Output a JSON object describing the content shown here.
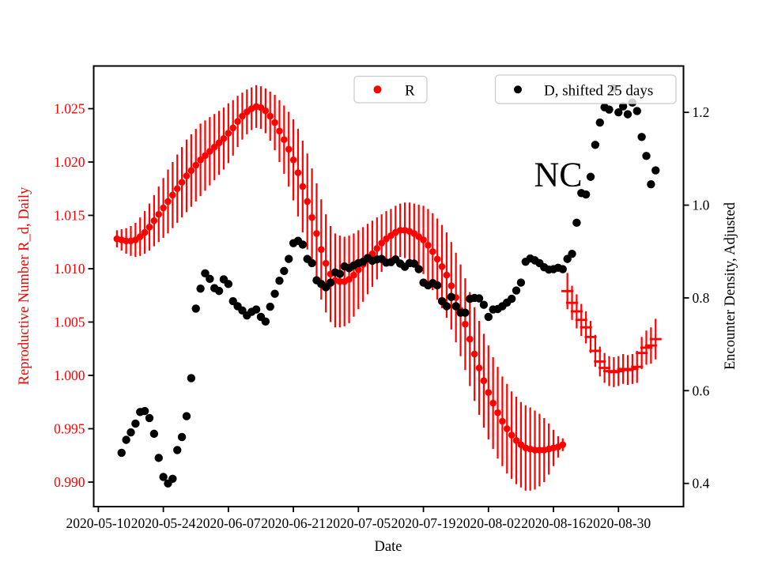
{
  "legend": [
    {
      "label": "R",
      "color": "#ff0000"
    },
    {
      "label": "D, shifted 25 days",
      "color": "#000000"
    }
  ],
  "chart_data": {
    "type": "scatter",
    "annotation": {
      "text": "NC",
      "date": "2020-08-17",
      "y_right": 1.07
    },
    "xlabel": "Date",
    "x_axis": {
      "range": [
        "2020-05-09",
        "2020-09-13"
      ],
      "tick_dates": [
        "2020-05-10",
        "2020-05-24",
        "2020-06-07",
        "2020-06-21",
        "2020-07-05",
        "2020-07-19",
        "2020-08-02",
        "2020-08-16",
        "2020-08-30"
      ],
      "tick_labels": [
        "2020-05-10",
        "2020-05-24",
        "2020-06-07",
        "2020-06-21",
        "2020-07-05",
        "2020-07-19",
        "2020-08-02",
        "2020-08-16",
        "2020-08-30"
      ]
    },
    "y_left": {
      "label": "Reproductive Number R_d, Daily",
      "color": "#ff0000",
      "range": [
        0.9877,
        1.029
      ],
      "tick_values": [
        1.025,
        1.02,
        1.015,
        1.01,
        1.005,
        1.0,
        0.995,
        0.99
      ],
      "tick_labels": [
        "1.025",
        "1.020",
        "1.015",
        "1.010",
        "1.005",
        "1.000",
        "0.995",
        "0.990"
      ]
    },
    "y_right": {
      "label": "Encounter Density, Adjusted",
      "color": "#000000",
      "range": [
        0.35,
        1.3
      ],
      "tick_values": [
        1.2,
        1.0,
        0.8,
        0.6,
        0.4
      ],
      "tick_labels": [
        "1.2",
        "1.0",
        "0.8",
        "0.6",
        "0.4"
      ]
    },
    "series": [
      {
        "name": "R",
        "axis": "left",
        "marker": "circle",
        "color": "#ff0000",
        "start_date": "2020-05-14",
        "values": [
          1.0128,
          1.0127,
          1.0126,
          1.0126,
          1.0127,
          1.013,
          1.0134,
          1.0139,
          1.0145,
          1.0151,
          1.0157,
          1.0163,
          1.0169,
          1.0175,
          1.0181,
          1.0187,
          1.0192,
          1.0197,
          1.0202,
          1.0206,
          1.021,
          1.0214,
          1.0218,
          1.0222,
          1.0227,
          1.0232,
          1.0238,
          1.0243,
          1.0247,
          1.025,
          1.0252,
          1.0251,
          1.0248,
          1.0243,
          1.0237,
          1.0229,
          1.0221,
          1.0212,
          1.0202,
          1.019,
          1.0177,
          1.0163,
          1.0148,
          1.0133,
          1.0118,
          1.0105,
          1.0095,
          1.0089,
          1.0088,
          1.0088,
          1.009,
          1.0094,
          1.0099,
          1.0104,
          1.0109,
          1.0114,
          1.0119,
          1.0124,
          1.0128,
          1.0131,
          1.0134,
          1.0136,
          1.0136,
          1.0135,
          1.0133,
          1.013,
          1.0127,
          1.0122,
          1.0116,
          1.0109,
          1.0102,
          1.0094,
          1.0084,
          1.0073,
          1.0061,
          1.0048,
          1.0034,
          1.002,
          1.0007,
          0.9995,
          0.9984,
          0.9974,
          0.9965,
          0.9957,
          0.995,
          0.9944,
          0.9939,
          0.9935,
          0.9932,
          0.9931,
          0.993,
          0.993,
          0.993,
          0.9931,
          0.9932,
          0.9933,
          0.9935
        ],
        "errors": [
          0.0008,
          0.001,
          0.0012,
          0.0014,
          0.0016,
          0.0018,
          0.002,
          0.0022,
          0.0024,
          0.0026,
          0.0028,
          0.003,
          0.0031,
          0.0032,
          0.0033,
          0.0034,
          0.0034,
          0.0034,
          0.0034,
          0.0033,
          0.0032,
          0.0031,
          0.003,
          0.0029,
          0.0028,
          0.0026,
          0.0024,
          0.0022,
          0.0021,
          0.002,
          0.002,
          0.002,
          0.0021,
          0.0023,
          0.0026,
          0.0029,
          0.0032,
          0.0035,
          0.0038,
          0.0041,
          0.0043,
          0.0045,
          0.0046,
          0.0047,
          0.0047,
          0.0046,
          0.0045,
          0.0044,
          0.0043,
          0.0042,
          0.0041,
          0.0039,
          0.0037,
          0.0035,
          0.0033,
          0.0031,
          0.0029,
          0.0027,
          0.0026,
          0.0025,
          0.0025,
          0.0025,
          0.0026,
          0.0027,
          0.0028,
          0.003,
          0.0032,
          0.0034,
          0.0036,
          0.0038,
          0.0039,
          0.004,
          0.0041,
          0.0042,
          0.0043,
          0.0043,
          0.0044,
          0.0044,
          0.0044,
          0.0044,
          0.0044,
          0.0043,
          0.0043,
          0.0042,
          0.0042,
          0.0041,
          0.0041,
          0.004,
          0.004,
          0.0039,
          0.0037,
          0.0034,
          0.003,
          0.0024,
          0.0017,
          0.001,
          0.0006
        ]
      },
      {
        "name": "R",
        "axis": "left",
        "marker": "hline",
        "color": "#ff0000",
        "start_date": "2020-08-19",
        "values": [
          1.0079,
          1.0068,
          1.006,
          1.0052,
          1.0045,
          1.0036,
          1.0023,
          1.0013,
          1.0007,
          1.0004,
          1.0003,
          1.0004,
          1.0006,
          1.0005,
          1.0006,
          1.0008,
          1.0021,
          1.0026,
          1.0028,
          1.0034
        ],
        "errors": [
          0.0017,
          0.0016,
          0.0016,
          0.0015,
          0.0015,
          0.0015,
          0.0015,
          0.0014,
          0.0014,
          0.0014,
          0.0014,
          0.0014,
          0.0014,
          0.0014,
          0.0014,
          0.0015,
          0.0015,
          0.0016,
          0.0017,
          0.0019
        ]
      },
      {
        "name": "D, shifted 25 days",
        "axis": "right",
        "marker": "dot",
        "color": "#000000",
        "start_date": "2020-05-15",
        "values": [
          0.466,
          0.494,
          0.51,
          0.529,
          0.554,
          0.556,
          0.541,
          0.507,
          0.455,
          0.414,
          0.4,
          0.41,
          0.472,
          0.5,
          0.545,
          0.627,
          0.777,
          0.82,
          0.853,
          0.841,
          0.821,
          0.815,
          0.84,
          0.83,
          0.793,
          0.782,
          0.773,
          0.762,
          0.77,
          0.775,
          0.759,
          0.749,
          0.781,
          0.809,
          0.837,
          0.858,
          0.884,
          0.918,
          0.923,
          0.915,
          0.884,
          0.875,
          0.838,
          0.83,
          0.823,
          0.833,
          0.855,
          0.852,
          0.868,
          0.864,
          0.87,
          0.875,
          0.878,
          0.886,
          0.88,
          0.883,
          0.884,
          0.876,
          0.877,
          0.883,
          0.874,
          0.867,
          0.875,
          0.874,
          0.862,
          0.833,
          0.827,
          0.832,
          0.827,
          0.793,
          0.782,
          0.802,
          0.782,
          0.768,
          0.768,
          0.798,
          0.8,
          0.799,
          0.785,
          0.759,
          0.775,
          0.776,
          0.782,
          0.79,
          0.798,
          0.816,
          0.833,
          0.878,
          0.885,
          0.881,
          0.875,
          0.866,
          0.861,
          0.862,
          0.865,
          0.862,
          0.884,
          0.895,
          0.962,
          1.026,
          1.023,
          1.061,
          1.13,
          1.178,
          1.211,
          1.206,
          1.252,
          1.2,
          1.213,
          1.196,
          1.221,
          1.203,
          1.147,
          1.106,
          1.045,
          1.075
        ]
      }
    ]
  }
}
